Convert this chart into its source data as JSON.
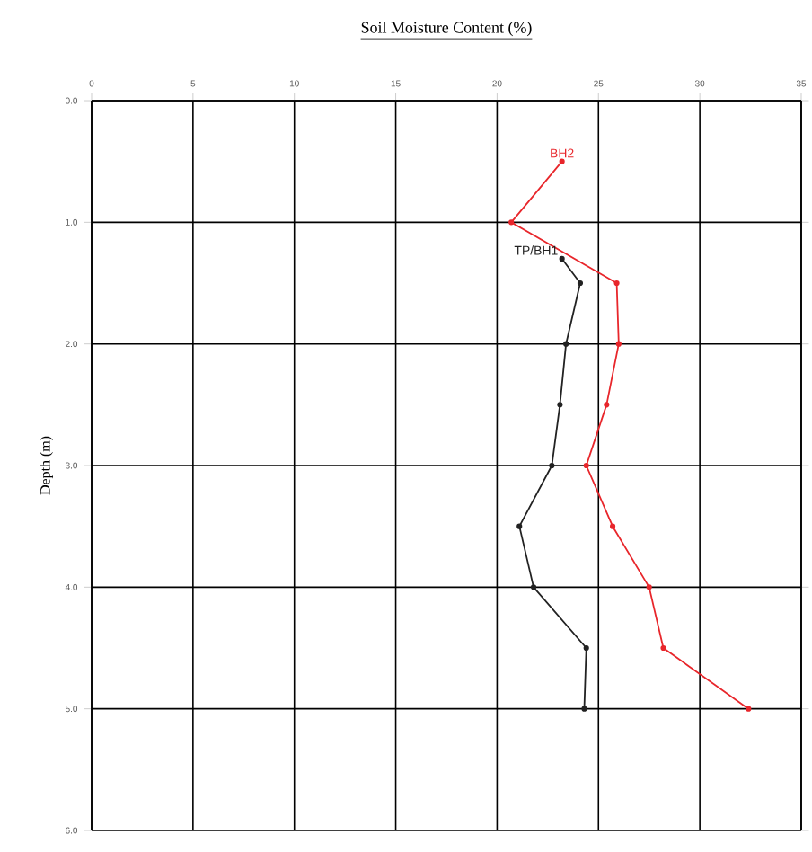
{
  "chart_data": {
    "type": "line",
    "title": "Soil Moisture Content (%)",
    "ylabel": "Depth (m)",
    "xlim": [
      0,
      35
    ],
    "xticks": [
      0,
      5,
      10,
      15,
      20,
      25,
      30,
      35
    ],
    "ylim": [
      6,
      0
    ],
    "yticks": [
      {
        "value": 0,
        "label": "0.0"
      },
      {
        "value": 1,
        "label": "1.0"
      },
      {
        "value": 2,
        "label": "2.0"
      },
      {
        "value": 3,
        "label": "3.0"
      },
      {
        "value": 4,
        "label": "4.0"
      },
      {
        "value": 5,
        "label": "5.0"
      },
      {
        "value": 6,
        "label": "6.0"
      }
    ],
    "grid": true,
    "legend": false,
    "marker": "circle",
    "line_style": "solid",
    "series": [
      {
        "name": "BH2",
        "color": "#e8262b",
        "x": [
          23.2,
          20.7,
          25.9,
          26.0,
          25.4,
          24.4,
          25.7,
          27.5,
          28.2,
          32.4
        ],
        "values": [
          0.5,
          1.0,
          1.5,
          2.0,
          2.5,
          3.0,
          3.5,
          4.0,
          4.5,
          5.0
        ]
      },
      {
        "name": "TP/BH1",
        "color": "#222222",
        "x": [
          23.2,
          24.1,
          23.4,
          23.1,
          22.7,
          21.1,
          21.8,
          24.4,
          24.3
        ],
        "values": [
          1.3,
          1.5,
          2.0,
          2.5,
          3.0,
          3.5,
          4.0,
          4.5,
          5.0
        ]
      }
    ]
  }
}
